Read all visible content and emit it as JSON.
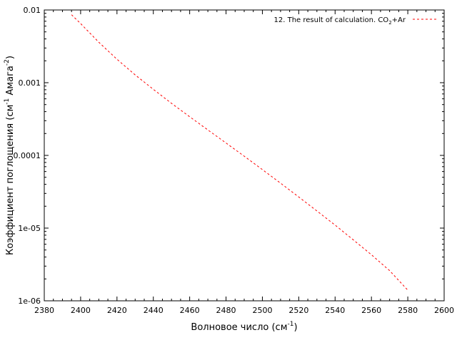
{
  "chart_data": {
    "type": "line",
    "title": "",
    "xlabel": {
      "text": "Волновое число (см",
      "sup": "-1",
      "suffix": ")"
    },
    "ylabel": {
      "prefix": "Коэффициент поглощения (см",
      "sup1": "-1",
      "mid": " Амага",
      "sup2": "-2",
      "suffix": ")"
    },
    "xlim": [
      2380,
      2600
    ],
    "ylim": [
      1e-06,
      0.01
    ],
    "yscale": "log",
    "grid": false,
    "legend_position": "top-right",
    "xticks": [
      "2380",
      "2400",
      "2420",
      "2440",
      "2460",
      "2480",
      "2500",
      "2520",
      "2540",
      "2560",
      "2580",
      "2600"
    ],
    "yticks": [
      "1e-06",
      "1e-05",
      "0.0001",
      "0.001",
      "0.01"
    ],
    "series": [
      {
        "name_parts": {
          "prefix": "12. The result of calculation. CO",
          "sub": "2",
          "suffix": "+Ar"
        },
        "color": "#ff0000",
        "style": "dashed",
        "x": [
          2395,
          2400,
          2410,
          2420,
          2430,
          2440,
          2450,
          2460,
          2470,
          2480,
          2490,
          2500,
          2510,
          2520,
          2530,
          2540,
          2550,
          2560,
          2570,
          2580
        ],
        "y": [
          0.0086,
          0.0065,
          0.0036,
          0.0021,
          0.00128,
          0.00081,
          0.00052,
          0.00034,
          0.000224,
          0.000148,
          9.75e-05,
          6.38e-05,
          4.15e-05,
          2.68e-05,
          1.72e-05,
          1.1e-05,
          6.9e-06,
          4.3e-06,
          2.6e-06,
          1.4e-06
        ]
      }
    ]
  }
}
